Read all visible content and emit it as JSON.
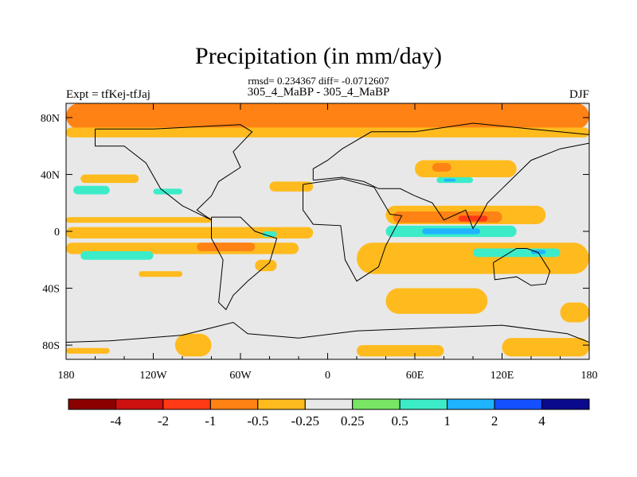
{
  "chart_data": {
    "type": "heatmap",
    "title": "Precipitation (in mm/day)",
    "stats": "rmsd= 0.234367 diff= -0.0712607",
    "subtitle": "305_4_MaBP - 305_4_MaBP",
    "left_label": "Expt = tfKej-tfJaj",
    "right_label": "DJF",
    "x_ticks": [
      "180",
      "120W",
      "60W",
      "0",
      "60E",
      "120E",
      "180"
    ],
    "x_tick_values": [
      -180,
      -120,
      -60,
      0,
      60,
      120,
      180
    ],
    "y_ticks": [
      "80N",
      "40N",
      "0",
      "40S",
      "80S"
    ],
    "y_tick_values": [
      80,
      40,
      0,
      -40,
      -80
    ],
    "xlim": [
      -180,
      180
    ],
    "ylim": [
      -90,
      90
    ],
    "colorbar": {
      "labels": [
        "-4",
        "-2",
        "-1",
        "-0.5",
        "-0.25",
        "0.25",
        "0.5",
        "1",
        "2",
        "4"
      ],
      "colors": [
        "#8b0000",
        "#cd1010",
        "#ff3a14",
        "#ff8214",
        "#ffbb1e",
        "#e8e8e8",
        "#78e664",
        "#3cecc8",
        "#1eb4ff",
        "#1450ff",
        "#0a0a8c"
      ]
    },
    "background_color": "#e8e8e8",
    "regions": [
      {
        "name": "north-polar-band",
        "level": -0.5,
        "lon": [
          -180,
          180
        ],
        "lat": [
          72,
          90
        ]
      },
      {
        "name": "north-polar-fringe",
        "level": -0.25,
        "lon": [
          -180,
          180
        ],
        "lat": [
          66,
          73
        ]
      },
      {
        "name": "asia-40n",
        "level": -0.25,
        "lon": [
          60,
          130
        ],
        "lat": [
          38,
          50
        ]
      },
      {
        "name": "asia-40n-core",
        "level": -0.5,
        "lon": [
          72,
          85
        ],
        "lat": [
          42,
          48
        ]
      },
      {
        "name": "asia-40n-wet",
        "level": 0.5,
        "lon": [
          75,
          100
        ],
        "lat": [
          34,
          38
        ]
      },
      {
        "name": "asia-40n-wet-core",
        "level": 1,
        "lon": [
          80,
          88
        ],
        "lat": [
          35,
          37
        ]
      },
      {
        "name": "pacific-40n",
        "level": -0.25,
        "lon": [
          -170,
          -130
        ],
        "lat": [
          34,
          40
        ]
      },
      {
        "name": "pacific-30n-wet",
        "level": 0.5,
        "lon": [
          -175,
          -150
        ],
        "lat": [
          26,
          32
        ]
      },
      {
        "name": "pacific-30n-wet2",
        "level": 0.5,
        "lon": [
          -120,
          -100
        ],
        "lat": [
          26,
          30
        ]
      },
      {
        "name": "atlantic-30n",
        "level": -0.25,
        "lon": [
          -40,
          -10
        ],
        "lat": [
          28,
          35
        ]
      },
      {
        "name": "indian-10n",
        "level": -0.25,
        "lon": [
          40,
          150
        ],
        "lat": [
          5,
          18
        ]
      },
      {
        "name": "indian-10n-core",
        "level": -0.5,
        "lon": [
          45,
          120
        ],
        "lat": [
          6,
          14
        ]
      },
      {
        "name": "indian-10n-hot",
        "level": -1,
        "lon": [
          90,
          110
        ],
        "lat": [
          7,
          11
        ]
      },
      {
        "name": "eq-indian-wet",
        "level": 0.5,
        "lon": [
          40,
          130
        ],
        "lat": [
          -4,
          4
        ]
      },
      {
        "name": "eq-indian-wet-core",
        "level": 1,
        "lon": [
          65,
          105
        ],
        "lat": [
          -2,
          2
        ]
      },
      {
        "name": "pacific-10n",
        "level": -0.25,
        "lon": [
          -180,
          -80
        ],
        "lat": [
          6,
          10
        ]
      },
      {
        "name": "pacific-eq",
        "level": -0.25,
        "lon": [
          -180,
          -10
        ],
        "lat": [
          -5,
          3
        ]
      },
      {
        "name": "pacific-10s",
        "level": -0.25,
        "lon": [
          -180,
          -20
        ],
        "lat": [
          -16,
          -8
        ]
      },
      {
        "name": "pacific-10s-core",
        "level": -0.5,
        "lon": [
          -90,
          -50
        ],
        "lat": [
          -14,
          -8
        ]
      },
      {
        "name": "spcz-wet",
        "level": 0.5,
        "lon": [
          -170,
          -120
        ],
        "lat": [
          -20,
          -14
        ]
      },
      {
        "name": "indian-15s",
        "level": -0.25,
        "lon": [
          20,
          180
        ],
        "lat": [
          -30,
          -8
        ]
      },
      {
        "name": "indian-15s-wet",
        "level": 0.5,
        "lon": [
          100,
          160
        ],
        "lat": [
          -18,
          -12
        ]
      },
      {
        "name": "indian-15s-wet-core",
        "level": 1,
        "lon": [
          140,
          150
        ],
        "lat": [
          -16,
          -13
        ]
      },
      {
        "name": "s-america-wet",
        "level": 0.5,
        "lon": [
          -45,
          -35
        ],
        "lat": [
          -4,
          0
        ]
      },
      {
        "name": "south-pacific-30s",
        "level": -0.25,
        "lon": [
          -130,
          -100
        ],
        "lat": [
          -32,
          -28
        ]
      },
      {
        "name": "south-america-south",
        "level": -0.25,
        "lon": [
          -50,
          -35
        ],
        "lat": [
          -28,
          -20
        ]
      },
      {
        "name": "south-indian-40s",
        "level": -0.25,
        "lon": [
          40,
          110
        ],
        "lat": [
          -58,
          -40
        ]
      },
      {
        "name": "south-pacific-60s",
        "level": -0.25,
        "lon": [
          160,
          180
        ],
        "lat": [
          -64,
          -50
        ]
      },
      {
        "name": "drake-passage",
        "level": -0.25,
        "lon": [
          -105,
          -80
        ],
        "lat": [
          -88,
          -72
        ]
      },
      {
        "name": "antarctic-indian",
        "level": -0.25,
        "lon": [
          120,
          180
        ],
        "lat": [
          -88,
          -75
        ]
      },
      {
        "name": "antarctic-atlantic",
        "level": -0.25,
        "lon": [
          20,
          80
        ],
        "lat": [
          -88,
          -80
        ]
      },
      {
        "name": "south-pole-band",
        "level": -0.25,
        "lon": [
          -180,
          -150
        ],
        "lat": [
          -86,
          -82
        ]
      }
    ],
    "coastline": [
      {
        "name": "north-america",
        "points": [
          [
            -160,
            72
          ],
          [
            -120,
            72
          ],
          [
            -60,
            75
          ],
          [
            -52,
            70
          ],
          [
            -65,
            56
          ],
          [
            -60,
            45
          ],
          [
            -75,
            35
          ],
          [
            -80,
            25
          ],
          [
            -90,
            15
          ],
          [
            -80,
            8
          ],
          [
            -100,
            18
          ],
          [
            -115,
            30
          ],
          [
            -125,
            48
          ],
          [
            -140,
            60
          ],
          [
            -160,
            60
          ],
          [
            -160,
            72
          ]
        ]
      },
      {
        "name": "south-america",
        "points": [
          [
            -80,
            10
          ],
          [
            -60,
            10
          ],
          [
            -50,
            0
          ],
          [
            -35,
            -5
          ],
          [
            -40,
            -22
          ],
          [
            -55,
            -35
          ],
          [
            -65,
            -45
          ],
          [
            -70,
            -55
          ],
          [
            -75,
            -50
          ],
          [
            -72,
            -20
          ],
          [
            -80,
            -5
          ],
          [
            -80,
            10
          ]
        ]
      },
      {
        "name": "africa",
        "points": [
          [
            -17,
            33
          ],
          [
            10,
            37
          ],
          [
            32,
            31
          ],
          [
            43,
            12
          ],
          [
            51,
            11
          ],
          [
            40,
            -10
          ],
          [
            35,
            -25
          ],
          [
            20,
            -35
          ],
          [
            12,
            -20
          ],
          [
            9,
            4
          ],
          [
            -10,
            5
          ],
          [
            -17,
            15
          ],
          [
            -17,
            33
          ]
        ]
      },
      {
        "name": "eurasia",
        "points": [
          [
            -10,
            36
          ],
          [
            -10,
            44
          ],
          [
            0,
            50
          ],
          [
            10,
            58
          ],
          [
            30,
            70
          ],
          [
            60,
            70
          ],
          [
            100,
            76
          ],
          [
            140,
            72
          ],
          [
            180,
            68
          ],
          [
            180,
            62
          ],
          [
            160,
            58
          ],
          [
            140,
            50
          ],
          [
            130,
            40
          ],
          [
            120,
            30
          ],
          [
            110,
            20
          ],
          [
            105,
            10
          ],
          [
            100,
            2
          ],
          [
            95,
            15
          ],
          [
            80,
            8
          ],
          [
            72,
            20
          ],
          [
            60,
            25
          ],
          [
            50,
            30
          ],
          [
            35,
            30
          ],
          [
            25,
            35
          ],
          [
            10,
            38
          ],
          [
            -10,
            36
          ]
        ]
      },
      {
        "name": "australia",
        "points": [
          [
            114,
            -22
          ],
          [
            130,
            -12
          ],
          [
            137,
            -12
          ],
          [
            145,
            -15
          ],
          [
            153,
            -28
          ],
          [
            150,
            -37
          ],
          [
            140,
            -38
          ],
          [
            130,
            -32
          ],
          [
            115,
            -34
          ],
          [
            114,
            -22
          ]
        ]
      },
      {
        "name": "antarctica",
        "points": [
          [
            -180,
            -78
          ],
          [
            -150,
            -77
          ],
          [
            -100,
            -73
          ],
          [
            -65,
            -64
          ],
          [
            -55,
            -72
          ],
          [
            -20,
            -75
          ],
          [
            20,
            -70
          ],
          [
            70,
            -68
          ],
          [
            120,
            -66
          ],
          [
            165,
            -72
          ],
          [
            180,
            -78
          ],
          [
            180,
            -90
          ],
          [
            -180,
            -90
          ],
          [
            -180,
            -78
          ]
        ]
      }
    ]
  }
}
